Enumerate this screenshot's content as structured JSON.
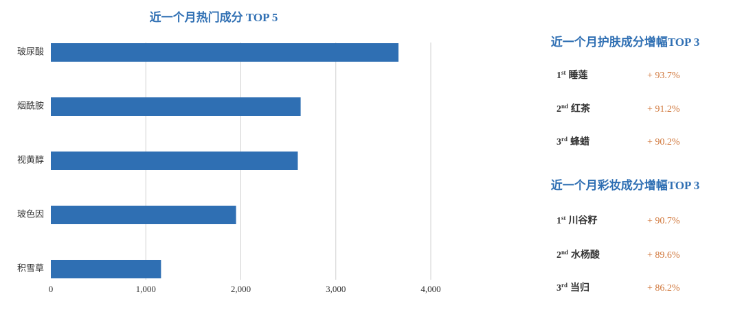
{
  "chart_data": {
    "type": "bar",
    "orientation": "horizontal",
    "title": "近一个月热门成分 TOP 5",
    "categories": [
      "玻尿酸",
      "烟酰胺",
      "视黄醇",
      "玻色因",
      "积雪草"
    ],
    "values": [
      3660,
      2630,
      2600,
      1950,
      1160
    ],
    "color": "#2f6fb3",
    "xlim": [
      0,
      4000
    ],
    "xticks": [
      0,
      {
        "value": 1000,
        "label": "1,000"
      },
      {
        "value": 2000,
        "label": "2,000"
      },
      {
        "value": 3000,
        "label": "3,000"
      },
      {
        "value": 4000,
        "label": "4,000"
      }
    ],
    "grid": true
  },
  "rankings": [
    {
      "title": "近一个月护肤成分增幅TOP 3",
      "items": [
        {
          "rank": "1",
          "ordinal": "st",
          "name": "睡莲",
          "change": "+ 93.7%"
        },
        {
          "rank": "2",
          "ordinal": "nd",
          "name": "红茶",
          "change": "+ 91.2%"
        },
        {
          "rank": "3",
          "ordinal": "rd",
          "name": "蜂蜡",
          "change": "+ 90.2%"
        }
      ]
    },
    {
      "title": "近一个月彩妆成分增幅TOP 3",
      "items": [
        {
          "rank": "1",
          "ordinal": "st",
          "name": "川谷籽",
          "change": "+ 90.7%"
        },
        {
          "rank": "2",
          "ordinal": "nd",
          "name": "水杨酸",
          "change": "+ 89.6%"
        },
        {
          "rank": "3",
          "ordinal": "rd",
          "name": "当归",
          "change": "+ 86.2%"
        }
      ]
    }
  ]
}
